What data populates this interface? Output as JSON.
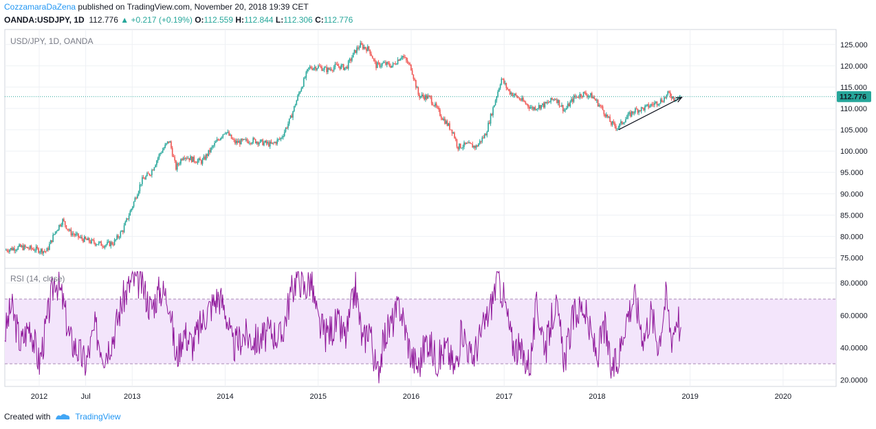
{
  "header": {
    "author": "CozzamaraDaZena",
    "published": "published on TradingView.com, November 20, 2018 19:39 CET",
    "symbol": "OANDA:USDJPY, 1D",
    "last": "112.776",
    "change": "+0.217 (+0.19%)",
    "o_label": "O:",
    "o_value": "112.559",
    "h_label": "H:",
    "h_value": "112.844",
    "l_label": "L:",
    "l_value": "112.306",
    "c_label": "C:",
    "c_value": "112.776"
  },
  "footer": {
    "created_with": "Created with",
    "brand": "TradingView"
  },
  "colors": {
    "up": "#26a69a",
    "down": "#ef5350",
    "rsi_line": "#8e1599",
    "rsi_band": "#f3e5fb",
    "price_line": "#26a69a",
    "price_label_bg": "#26a69a"
  },
  "chart_data": [
    {
      "type": "candlestick",
      "pane_title": "USD/JPY, 1D, OANDA",
      "current_price": 112.776,
      "current_price_label": "112.776",
      "ylim": [
        72.5,
        128.5
      ],
      "y_ticks": [
        75,
        80,
        85,
        90,
        95,
        100,
        105,
        110,
        115,
        120,
        125
      ],
      "y_tick_labels": [
        "75.000",
        "80.000",
        "85.000",
        "90.000",
        "95.000",
        "100.000",
        "105.000",
        "110.000",
        "115.000",
        "120.000",
        "125.000"
      ],
      "x_ticks": [
        2012.0,
        2012.5,
        2013.0,
        2014.0,
        2015.0,
        2016.0,
        2017.0,
        2018.0,
        2019.0,
        2020.0
      ],
      "x_tick_labels": [
        "2012",
        "Jul",
        "2013",
        "2014",
        "2015",
        "2016",
        "2017",
        "2018",
        "2019",
        "2020"
      ],
      "xlim": [
        2011.63,
        2020.57
      ],
      "price_path": [
        [
          2011.63,
          76.8
        ],
        [
          2011.8,
          77.5
        ],
        [
          2011.95,
          77.0
        ],
        [
          2012.08,
          76.5
        ],
        [
          2012.17,
          81.0
        ],
        [
          2012.25,
          83.8
        ],
        [
          2012.33,
          81.0
        ],
        [
          2012.45,
          79.5
        ],
        [
          2012.55,
          78.8
        ],
        [
          2012.7,
          78.0
        ],
        [
          2012.8,
          78.5
        ],
        [
          2012.9,
          81.5
        ],
        [
          2013.0,
          87.0
        ],
        [
          2013.1,
          93.0
        ],
        [
          2013.2,
          95.0
        ],
        [
          2013.3,
          99.5
        ],
        [
          2013.4,
          102.5
        ],
        [
          2013.47,
          96.0
        ],
        [
          2013.55,
          99.0
        ],
        [
          2013.65,
          98.0
        ],
        [
          2013.75,
          97.5
        ],
        [
          2013.9,
          102.0
        ],
        [
          2014.0,
          104.8
        ],
        [
          2014.1,
          102.0
        ],
        [
          2014.3,
          102.5
        ],
        [
          2014.5,
          101.5
        ],
        [
          2014.6,
          103.0
        ],
        [
          2014.7,
          107.5
        ],
        [
          2014.8,
          114.0
        ],
        [
          2014.9,
          119.5
        ],
        [
          2015.0,
          119.8
        ],
        [
          2015.1,
          119.0
        ],
        [
          2015.2,
          120.0
        ],
        [
          2015.3,
          119.5
        ],
        [
          2015.4,
          123.5
        ],
        [
          2015.45,
          124.8
        ],
        [
          2015.55,
          123.8
        ],
        [
          2015.62,
          120.0
        ],
        [
          2015.7,
          120.5
        ],
        [
          2015.8,
          120.0
        ],
        [
          2015.9,
          122.5
        ],
        [
          2016.0,
          119.5
        ],
        [
          2016.08,
          113.0
        ],
        [
          2016.2,
          112.5
        ],
        [
          2016.33,
          108.0
        ],
        [
          2016.45,
          104.5
        ],
        [
          2016.5,
          101.0
        ],
        [
          2016.6,
          101.5
        ],
        [
          2016.7,
          101.0
        ],
        [
          2016.8,
          104.0
        ],
        [
          2016.88,
          110.0
        ],
        [
          2016.97,
          117.0
        ],
        [
          2017.05,
          114.0
        ],
        [
          2017.15,
          112.5
        ],
        [
          2017.3,
          110.0
        ],
        [
          2017.45,
          111.0
        ],
        [
          2017.55,
          112.5
        ],
        [
          2017.65,
          109.5
        ],
        [
          2017.75,
          112.5
        ],
        [
          2017.85,
          113.5
        ],
        [
          2017.95,
          112.8
        ],
        [
          2018.05,
          110.0
        ],
        [
          2018.15,
          106.5
        ],
        [
          2018.22,
          105.5
        ],
        [
          2018.3,
          107.5
        ],
        [
          2018.4,
          109.5
        ],
        [
          2018.5,
          110.0
        ],
        [
          2018.6,
          111.0
        ],
        [
          2018.7,
          112.0
        ],
        [
          2018.77,
          113.5
        ],
        [
          2018.83,
          112.3
        ],
        [
          2018.89,
          112.8
        ]
      ],
      "trendline": [
        [
          2018.23,
          105.0
        ],
        [
          2018.91,
          112.6
        ]
      ]
    },
    {
      "type": "line",
      "pane_title": "RSI (14, close)",
      "ylim": [
        16,
        89
      ],
      "y_ticks": [
        20,
        40,
        60,
        80
      ],
      "y_tick_labels": [
        "20.0000",
        "40.0000",
        "60.0000",
        "80.0000"
      ],
      "bands": [
        30,
        70
      ],
      "rsi_path": [
        [
          2011.63,
          48
        ],
        [
          2011.7,
          66
        ],
        [
          2011.8,
          42
        ],
        [
          2011.9,
          55
        ],
        [
          2012.0,
          30
        ],
        [
          2012.08,
          55
        ],
        [
          2012.17,
          84
        ],
        [
          2012.25,
          70
        ],
        [
          2012.33,
          45
        ],
        [
          2012.4,
          40
        ],
        [
          2012.5,
          30
        ],
        [
          2012.6,
          52
        ],
        [
          2012.7,
          36
        ],
        [
          2012.8,
          48
        ],
        [
          2012.9,
          70
        ],
        [
          2013.0,
          82
        ],
        [
          2013.1,
          80
        ],
        [
          2013.2,
          64
        ],
        [
          2013.3,
          76
        ],
        [
          2013.4,
          70
        ],
        [
          2013.47,
          32
        ],
        [
          2013.55,
          50
        ],
        [
          2013.65,
          42
        ],
        [
          2013.8,
          62
        ],
        [
          2013.93,
          72
        ],
        [
          2014.0,
          64
        ],
        [
          2014.08,
          40
        ],
        [
          2014.2,
          48
        ],
        [
          2014.35,
          44
        ],
        [
          2014.5,
          50
        ],
        [
          2014.6,
          46
        ],
        [
          2014.7,
          72
        ],
        [
          2014.78,
          86
        ],
        [
          2014.85,
          76
        ],
        [
          2014.92,
          82
        ],
        [
          2015.0,
          55
        ],
        [
          2015.08,
          48
        ],
        [
          2015.2,
          55
        ],
        [
          2015.3,
          46
        ],
        [
          2015.4,
          78
        ],
        [
          2015.48,
          42
        ],
        [
          2015.55,
          55
        ],
        [
          2015.63,
          22
        ],
        [
          2015.72,
          48
        ],
        [
          2015.8,
          56
        ],
        [
          2015.88,
          66
        ],
        [
          2016.0,
          35
        ],
        [
          2016.08,
          28
        ],
        [
          2016.17,
          46
        ],
        [
          2016.28,
          32
        ],
        [
          2016.38,
          40
        ],
        [
          2016.47,
          26
        ],
        [
          2016.55,
          52
        ],
        [
          2016.65,
          32
        ],
        [
          2016.75,
          48
        ],
        [
          2016.85,
          64
        ],
        [
          2016.93,
          84
        ],
        [
          2017.0,
          70
        ],
        [
          2017.08,
          44
        ],
        [
          2017.18,
          36
        ],
        [
          2017.28,
          30
        ],
        [
          2017.35,
          66
        ],
        [
          2017.45,
          40
        ],
        [
          2017.55,
          68
        ],
        [
          2017.65,
          32
        ],
        [
          2017.75,
          60
        ],
        [
          2017.85,
          66
        ],
        [
          2017.93,
          48
        ],
        [
          2018.0,
          35
        ],
        [
          2018.08,
          54
        ],
        [
          2018.15,
          26
        ],
        [
          2018.22,
          30
        ],
        [
          2018.3,
          56
        ],
        [
          2018.4,
          72
        ],
        [
          2018.5,
          46
        ],
        [
          2018.58,
          62
        ],
        [
          2018.66,
          42
        ],
        [
          2018.74,
          72
        ],
        [
          2018.8,
          46
        ],
        [
          2018.87,
          62
        ],
        [
          2018.9,
          44
        ]
      ]
    }
  ]
}
